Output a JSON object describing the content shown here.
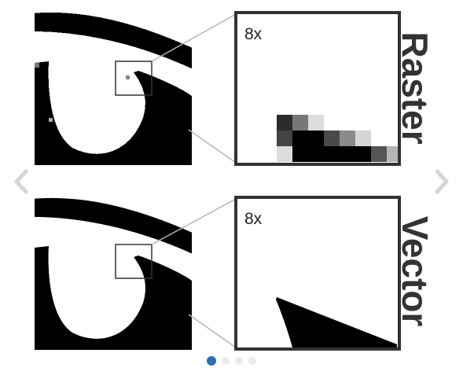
{
  "panels": [
    {
      "id": "raster",
      "side_label": "Raster",
      "zoom_label": "8x"
    },
    {
      "id": "vector",
      "side_label": "Vector",
      "zoom_label": "8x"
    }
  ],
  "carousel": {
    "prev_icon": "chevron-left-icon",
    "next_icon": "chevron-right-icon",
    "slide_count": 4,
    "active_index": 0,
    "colors": {
      "active_dot": "#2f6fb5",
      "inactive_dot": "#ececec",
      "arrow": "#d6d6d6"
    }
  }
}
